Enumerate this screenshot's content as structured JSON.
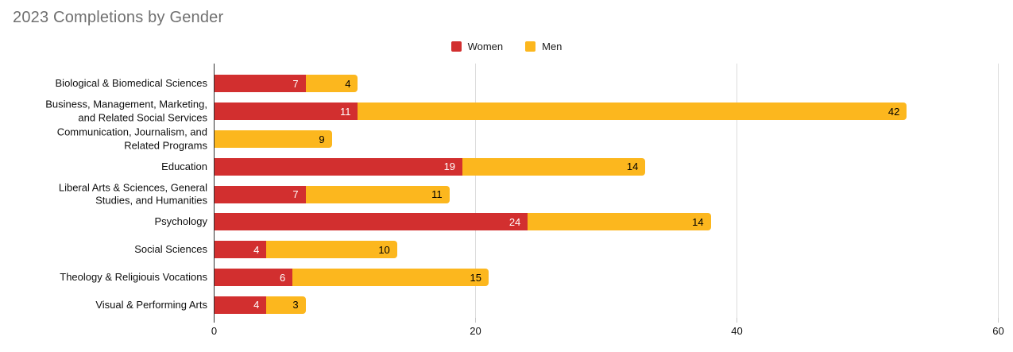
{
  "title": "2023 Completions by Gender",
  "colors": {
    "women": "#D22F2F",
    "men": "#FCB71E",
    "title_text": "#707070",
    "axis_line": "#333333",
    "gridline": "#DCDCDC",
    "tick_zero": "#333333",
    "tick_other": "#C8C8C8",
    "label_on_women": "#FFFFFF",
    "label_on_men": "#000000"
  },
  "legend": {
    "position": "top-center",
    "items": [
      {
        "label": "Women",
        "color": "#D22F2F"
      },
      {
        "label": "Men",
        "color": "#FCB71E"
      }
    ]
  },
  "chart_data": {
    "type": "bar",
    "orientation": "horizontal",
    "stacked": true,
    "title": "2023 Completions by Gender",
    "categories": [
      "Biological & Biomedical Sciences",
      "Business, Management, Marketing,\nand Related Social Services",
      "Communication, Journalism, and\nRelated Programs",
      "Education",
      "Liberal Arts & Sciences, General\nStudies, and Humanities",
      "Psychology",
      "Social Sciences",
      "Theology & Religiouis Vocations",
      "Visual & Performing Arts"
    ],
    "series": [
      {
        "name": "Women",
        "color": "#D22F2F",
        "label_color": "#FFFFFF",
        "values": [
          7,
          11,
          0,
          19,
          7,
          24,
          4,
          6,
          4
        ]
      },
      {
        "name": "Men",
        "color": "#FCB71E",
        "label_color": "#000000",
        "values": [
          4,
          42,
          9,
          14,
          11,
          14,
          10,
          15,
          3
        ]
      }
    ],
    "x_axis": {
      "min": 0,
      "max": 60,
      "ticks": [
        0,
        20,
        40,
        60
      ]
    },
    "grid": true,
    "data_labels": true,
    "legend_position": "top"
  }
}
